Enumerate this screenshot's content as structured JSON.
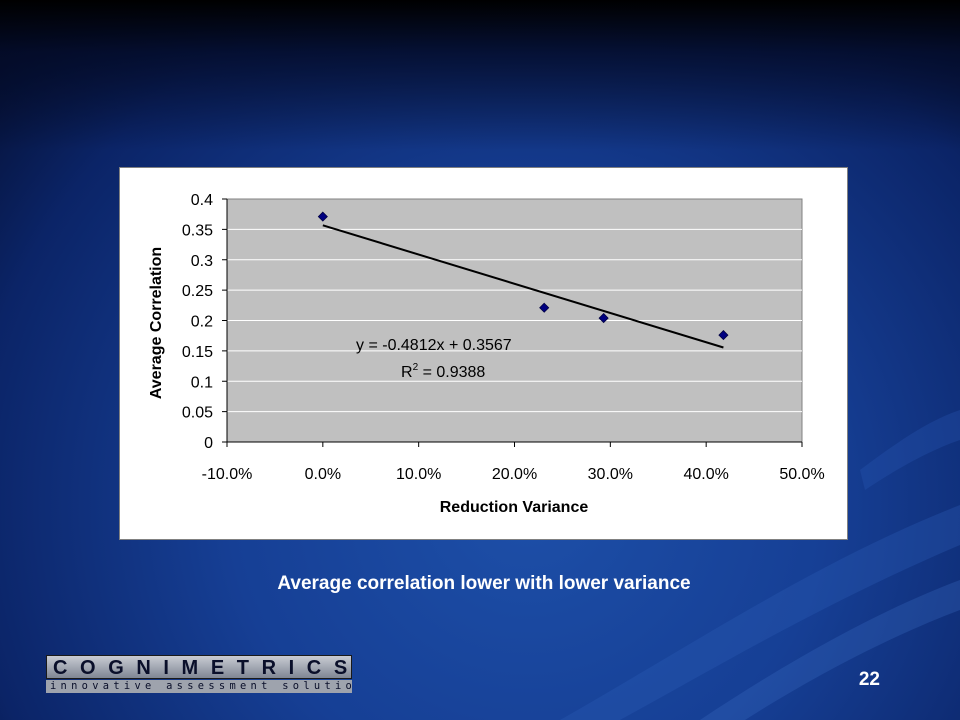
{
  "slide": {
    "caption": "Average correlation lower with lower variance",
    "page_number": "22"
  },
  "logo": {
    "wordmark": "COGNIMETRICS",
    "tagline": "innovative assessment solutions"
  },
  "colors": {
    "marker": "#000080",
    "plot_background": "#c0c0c0",
    "trendline": "#000000"
  },
  "chart_data": {
    "type": "scatter",
    "xlabel": "Reduction Variance",
    "ylabel": "Average Correlation",
    "xlim": [
      -0.1,
      0.5
    ],
    "ylim": [
      0,
      0.4
    ],
    "x_ticks": [
      -0.1,
      0.0,
      0.1,
      0.2,
      0.3,
      0.4,
      0.5
    ],
    "x_tick_labels": [
      "-10.0%",
      "0.0%",
      "10.0%",
      "20.0%",
      "30.0%",
      "40.0%",
      "50.0%"
    ],
    "y_ticks": [
      0,
      0.05,
      0.1,
      0.15,
      0.2,
      0.25,
      0.3,
      0.35,
      0.4
    ],
    "y_tick_labels": [
      "0",
      "0.05",
      "0.1",
      "0.15",
      "0.2",
      "0.25",
      "0.3",
      "0.35",
      "0.4"
    ],
    "grid": "horizontal",
    "legend": "none",
    "series": [
      {
        "marker": "diamond",
        "points": [
          {
            "x": 0.0,
            "y": 0.371
          },
          {
            "x": 0.231,
            "y": 0.221
          },
          {
            "x": 0.293,
            "y": 0.204
          },
          {
            "x": 0.418,
            "y": 0.176
          }
        ]
      }
    ],
    "trendline": {
      "type": "linear",
      "slope": -0.4812,
      "intercept": 0.3567,
      "x_range": [
        0.0,
        0.418
      ],
      "equation_label": "y = -0.4812x + 0.3567",
      "r2_prefix": "R",
      "r2_superscript": "2",
      "r2_value": " = 0.9388"
    }
  }
}
